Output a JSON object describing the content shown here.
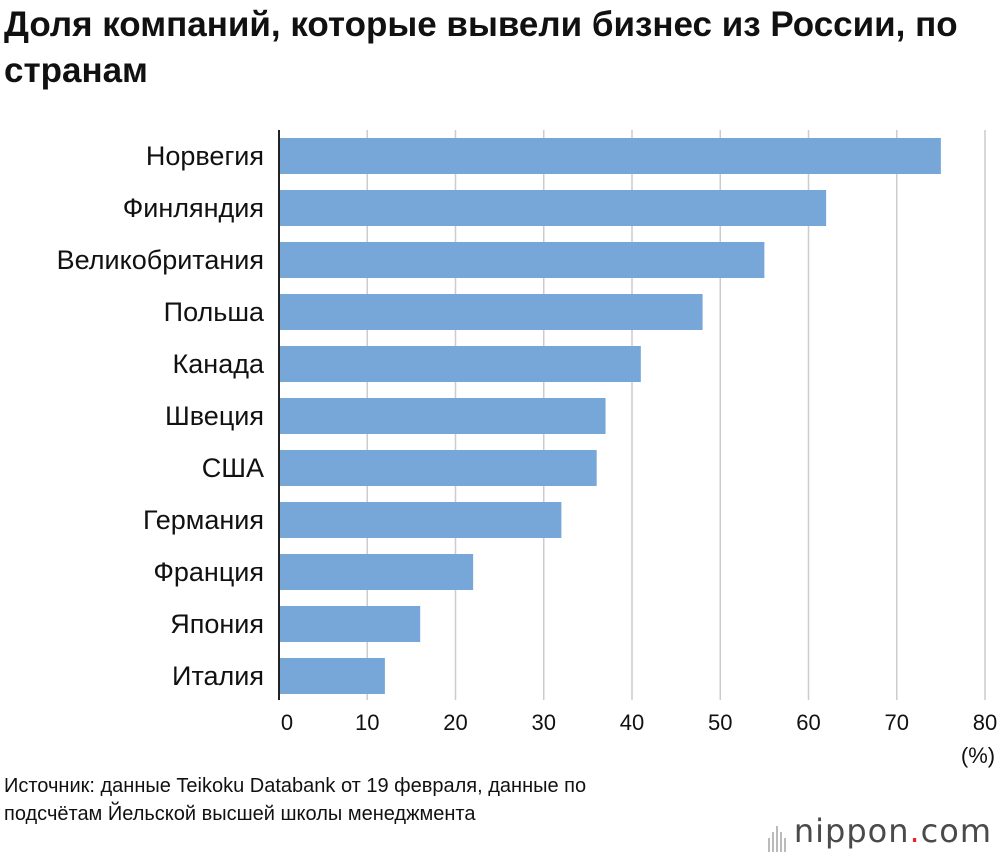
{
  "title": "Доля компаний, которые вывели бизнес из России, по странам",
  "unit_label": "(%)",
  "source": {
    "line1": "Источник: данные Teikoku Databank от 19 февраля, данные по",
    "line2": "подсчётам Йельской высшей школы менеджмента"
  },
  "logo": {
    "text": "nippon",
    "dot": ".",
    "suffix": "com"
  },
  "colors": {
    "bar": "#77a7d9",
    "grid": "#cccccc",
    "axis": "#222222"
  },
  "chart_data": {
    "type": "bar",
    "orientation": "horizontal",
    "categories": [
      "Норвегия",
      "Финляндия",
      "Великобритания",
      "Польша",
      "Канада",
      "Швеция",
      "США",
      "Германия",
      "Франция",
      "Япония",
      "Италия"
    ],
    "values": [
      75,
      62,
      55,
      48,
      41,
      37,
      36,
      32,
      22,
      16,
      12
    ],
    "xlim": [
      0,
      80
    ],
    "xticks": [
      0,
      10,
      20,
      30,
      40,
      50,
      60,
      70,
      80
    ],
    "grid": true
  }
}
